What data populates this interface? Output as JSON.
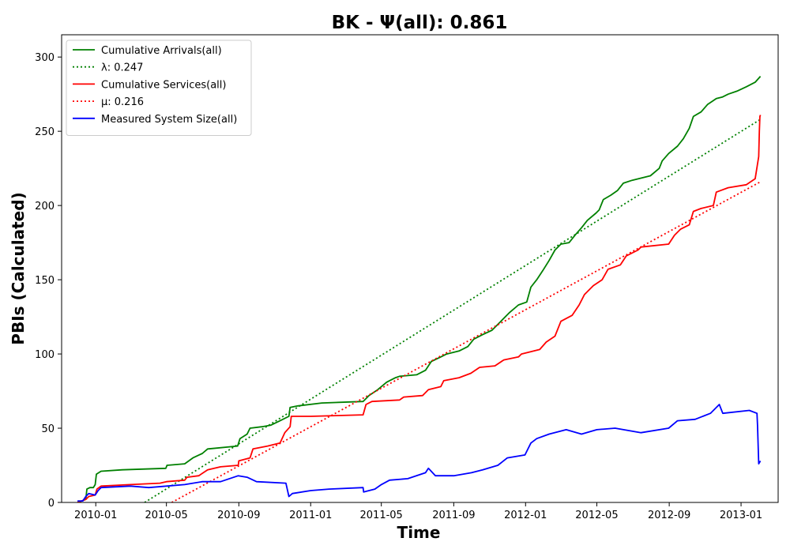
{
  "chart_data": {
    "type": "line",
    "title": "BK -  Ψ(all): 0.861",
    "xlabel": "Time",
    "ylabel": "PBIs (Calculated)",
    "xlim": [
      "2009-11-04",
      "2013-03-05"
    ],
    "ylim": [
      0,
      315
    ],
    "x_ticks": [
      "2010-01",
      "2010-05",
      "2010-09",
      "2011-01",
      "2011-05",
      "2011-09",
      "2012-01",
      "2012-05",
      "2012-09",
      "2013-01"
    ],
    "y_ticks": [
      0,
      50,
      100,
      150,
      200,
      250,
      300
    ],
    "grid": false,
    "legend_position": "top-left",
    "series": [
      {
        "name": "Cumulative Arrivals(all)",
        "style": "solid",
        "color": "#008000",
        "points": [
          [
            "2009-12-01",
            0
          ],
          [
            "2009-12-08",
            1
          ],
          [
            "2009-12-15",
            2
          ],
          [
            "2009-12-17",
            9
          ],
          [
            "2009-12-22",
            10
          ],
          [
            "2009-12-28",
            10
          ],
          [
            "2009-12-31",
            12
          ],
          [
            "2010-01-02",
            19
          ],
          [
            "2010-01-10",
            21
          ],
          [
            "2010-02-15",
            22
          ],
          [
            "2010-04-30",
            23
          ],
          [
            "2010-05-02",
            25
          ],
          [
            "2010-06-01",
            26
          ],
          [
            "2010-06-15",
            30
          ],
          [
            "2010-07-01",
            33
          ],
          [
            "2010-07-10",
            36
          ],
          [
            "2010-08-30",
            38
          ],
          [
            "2010-09-03",
            43
          ],
          [
            "2010-09-15",
            46
          ],
          [
            "2010-09-20",
            50
          ],
          [
            "2010-10-10",
            51
          ],
          [
            "2010-10-25",
            52
          ],
          [
            "2010-11-10",
            55
          ],
          [
            "2010-11-25",
            58
          ],
          [
            "2010-11-27",
            64
          ],
          [
            "2010-12-10",
            65
          ],
          [
            "2011-01-20",
            67
          ],
          [
            "2011-03-31",
            68
          ],
          [
            "2011-04-10",
            72
          ],
          [
            "2011-04-25",
            76
          ],
          [
            "2011-05-10",
            81
          ],
          [
            "2011-05-25",
            84
          ],
          [
            "2011-06-01",
            85
          ],
          [
            "2011-06-30",
            86
          ],
          [
            "2011-07-15",
            89
          ],
          [
            "2011-07-25",
            95
          ],
          [
            "2011-08-10",
            98
          ],
          [
            "2011-08-20",
            100
          ],
          [
            "2011-09-10",
            102
          ],
          [
            "2011-09-25",
            105
          ],
          [
            "2011-10-05",
            110
          ],
          [
            "2011-10-20",
            113
          ],
          [
            "2011-11-05",
            116
          ],
          [
            "2011-11-20",
            122
          ],
          [
            "2011-12-05",
            128
          ],
          [
            "2011-12-20",
            133
          ],
          [
            "2012-01-03",
            135
          ],
          [
            "2012-01-10",
            145
          ],
          [
            "2012-01-20",
            150
          ],
          [
            "2012-01-30",
            156
          ],
          [
            "2012-02-10",
            163
          ],
          [
            "2012-02-20",
            170
          ],
          [
            "2012-03-01",
            174
          ],
          [
            "2012-03-15",
            175
          ],
          [
            "2012-03-25",
            180
          ],
          [
            "2012-04-05",
            185
          ],
          [
            "2012-04-15",
            190
          ],
          [
            "2012-04-30",
            195
          ],
          [
            "2012-05-05",
            197
          ],
          [
            "2012-05-12",
            204
          ],
          [
            "2012-05-25",
            207
          ],
          [
            "2012-06-05",
            210
          ],
          [
            "2012-06-15",
            215
          ],
          [
            "2012-06-30",
            217
          ],
          [
            "2012-07-31",
            220
          ],
          [
            "2012-08-15",
            225
          ],
          [
            "2012-08-20",
            230
          ],
          [
            "2012-08-31",
            235
          ],
          [
            "2012-09-15",
            240
          ],
          [
            "2012-09-25",
            245
          ],
          [
            "2012-10-05",
            252
          ],
          [
            "2012-10-12",
            260
          ],
          [
            "2012-10-25",
            263
          ],
          [
            "2012-11-05",
            268
          ],
          [
            "2012-11-20",
            272
          ],
          [
            "2012-11-30",
            273
          ],
          [
            "2012-12-10",
            275
          ],
          [
            "2012-12-25",
            277
          ],
          [
            "2013-01-10",
            280
          ],
          [
            "2013-01-25",
            283
          ],
          [
            "2013-02-03",
            287
          ]
        ]
      },
      {
        "name": "λ: 0.247",
        "style": "dotted",
        "color": "#008000",
        "points": [
          [
            "2010-03-25",
            0
          ],
          [
            "2013-02-03",
            258
          ]
        ]
      },
      {
        "name": "Cumulative Services(all)",
        "style": "solid",
        "color": "#ff0000",
        "points": [
          [
            "2009-12-01",
            0
          ],
          [
            "2009-12-15",
            2
          ],
          [
            "2009-12-20",
            4
          ],
          [
            "2009-12-31",
            5
          ],
          [
            "2010-01-03",
            9
          ],
          [
            "2010-01-10",
            11
          ],
          [
            "2010-03-01",
            12
          ],
          [
            "2010-04-20",
            13
          ],
          [
            "2010-05-01",
            14
          ],
          [
            "2010-06-01",
            15
          ],
          [
            "2010-06-05",
            17
          ],
          [
            "2010-06-25",
            18
          ],
          [
            "2010-07-10",
            22
          ],
          [
            "2010-08-01",
            24
          ],
          [
            "2010-08-31",
            25
          ],
          [
            "2010-09-01",
            28
          ],
          [
            "2010-09-20",
            30
          ],
          [
            "2010-09-25",
            36
          ],
          [
            "2010-10-20",
            38
          ],
          [
            "2010-11-10",
            40
          ],
          [
            "2010-11-18",
            47
          ],
          [
            "2010-11-27",
            51
          ],
          [
            "2010-11-29",
            58
          ],
          [
            "2011-01-01",
            58
          ],
          [
            "2011-03-31",
            59
          ],
          [
            "2011-04-05",
            66
          ],
          [
            "2011-04-15",
            68
          ],
          [
            "2011-06-01",
            69
          ],
          [
            "2011-06-08",
            71
          ],
          [
            "2011-07-10",
            72
          ],
          [
            "2011-07-20",
            76
          ],
          [
            "2011-08-10",
            78
          ],
          [
            "2011-08-15",
            82
          ],
          [
            "2011-09-10",
            84
          ],
          [
            "2011-09-30",
            87
          ],
          [
            "2011-10-15",
            91
          ],
          [
            "2011-11-10",
            92
          ],
          [
            "2011-11-25",
            96
          ],
          [
            "2011-12-20",
            98
          ],
          [
            "2011-12-25",
            100
          ],
          [
            "2012-01-25",
            103
          ],
          [
            "2012-02-05",
            108
          ],
          [
            "2012-02-20",
            112
          ],
          [
            "2012-03-01",
            122
          ],
          [
            "2012-03-20",
            126
          ],
          [
            "2012-04-01",
            133
          ],
          [
            "2012-04-10",
            140
          ],
          [
            "2012-04-25",
            146
          ],
          [
            "2012-05-10",
            150
          ],
          [
            "2012-05-20",
            157
          ],
          [
            "2012-06-10",
            160
          ],
          [
            "2012-06-20",
            166
          ],
          [
            "2012-07-10",
            170
          ],
          [
            "2012-07-15",
            172
          ],
          [
            "2012-08-31",
            174
          ],
          [
            "2012-09-10",
            180
          ],
          [
            "2012-09-20",
            184
          ],
          [
            "2012-10-05",
            187
          ],
          [
            "2012-10-12",
            196
          ],
          [
            "2012-10-25",
            198
          ],
          [
            "2012-11-15",
            200
          ],
          [
            "2012-11-20",
            209
          ],
          [
            "2012-12-10",
            212
          ],
          [
            "2013-01-10",
            214
          ],
          [
            "2013-01-25",
            218
          ],
          [
            "2013-01-29",
            228
          ],
          [
            "2013-01-31",
            233
          ],
          [
            "2013-02-01",
            250
          ],
          [
            "2013-02-02",
            260
          ],
          [
            "2013-02-03",
            261
          ]
        ]
      },
      {
        "name": "μ: 0.216",
        "style": "dotted",
        "color": "#ff0000",
        "points": [
          [
            "2010-05-10",
            0
          ],
          [
            "2013-02-03",
            216
          ]
        ]
      },
      {
        "name": "Measured System Size(all)",
        "style": "solid",
        "color": "#0000ff",
        "points": [
          [
            "2009-12-01",
            1
          ],
          [
            "2009-12-10",
            1
          ],
          [
            "2009-12-15",
            4
          ],
          [
            "2009-12-20",
            6
          ],
          [
            "2009-12-31",
            5
          ],
          [
            "2010-01-05",
            8
          ],
          [
            "2010-01-10",
            10
          ],
          [
            "2010-03-01",
            11
          ],
          [
            "2010-04-01",
            10
          ],
          [
            "2010-05-01",
            11
          ],
          [
            "2010-06-01",
            12
          ],
          [
            "2010-07-01",
            14
          ],
          [
            "2010-08-01",
            14
          ],
          [
            "2010-08-31",
            18
          ],
          [
            "2010-09-15",
            17
          ],
          [
            "2010-10-01",
            14
          ],
          [
            "2010-11-20",
            13
          ],
          [
            "2010-11-25",
            4
          ],
          [
            "2010-12-01",
            6
          ],
          [
            "2011-01-01",
            8
          ],
          [
            "2011-02-01",
            9
          ],
          [
            "2011-03-31",
            10
          ],
          [
            "2011-04-01",
            7
          ],
          [
            "2011-04-20",
            9
          ],
          [
            "2011-05-01",
            12
          ],
          [
            "2011-05-15",
            15
          ],
          [
            "2011-06-15",
            16
          ],
          [
            "2011-07-15",
            20
          ],
          [
            "2011-07-20",
            23
          ],
          [
            "2011-08-01",
            18
          ],
          [
            "2011-09-01",
            18
          ],
          [
            "2011-10-01",
            20
          ],
          [
            "2011-10-20",
            22
          ],
          [
            "2011-11-15",
            25
          ],
          [
            "2011-12-01",
            30
          ],
          [
            "2011-12-31",
            32
          ],
          [
            "2012-01-10",
            40
          ],
          [
            "2012-01-20",
            43
          ],
          [
            "2012-02-10",
            46
          ],
          [
            "2012-03-10",
            49
          ],
          [
            "2012-04-05",
            46
          ],
          [
            "2012-05-01",
            49
          ],
          [
            "2012-06-01",
            50
          ],
          [
            "2012-07-15",
            47
          ],
          [
            "2012-08-31",
            50
          ],
          [
            "2012-09-15",
            55
          ],
          [
            "2012-10-15",
            56
          ],
          [
            "2012-11-10",
            60
          ],
          [
            "2012-11-25",
            66
          ],
          [
            "2012-12-01",
            60
          ],
          [
            "2013-01-15",
            62
          ],
          [
            "2013-01-28",
            60
          ],
          [
            "2013-01-29",
            52
          ],
          [
            "2013-01-31",
            26
          ],
          [
            "2013-02-03",
            28
          ]
        ]
      }
    ]
  }
}
